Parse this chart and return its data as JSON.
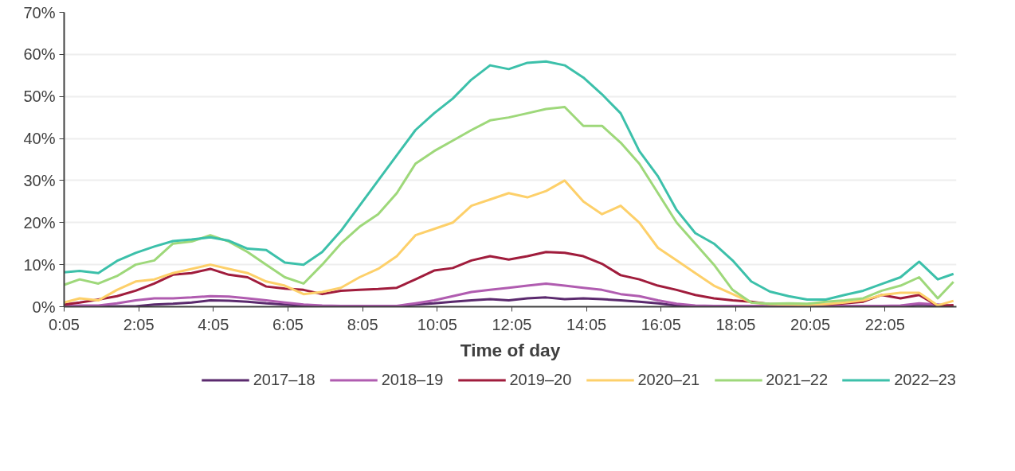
{
  "chart_data": {
    "type": "line",
    "xlabel": "Time of day",
    "x": [
      0.0833,
      0.5,
      1,
      1.5,
      2,
      2.5,
      3,
      3.5,
      4,
      4.5,
      5,
      5.5,
      6,
      6.5,
      7,
      7.5,
      8,
      8.5,
      9,
      9.5,
      10,
      10.5,
      11,
      11.5,
      12,
      12.5,
      13,
      13.5,
      14,
      14.5,
      15,
      15.5,
      16,
      16.5,
      17,
      17.5,
      18,
      18.5,
      19,
      19.5,
      20,
      20.5,
      21,
      21.5,
      22,
      22.5,
      23,
      23.5,
      23.92
    ],
    "series": [
      {
        "name": "2017–18",
        "color": "#5b2a6e",
        "values": [
          0.1,
          0.1,
          0.1,
          0.1,
          0.1,
          0.5,
          0.7,
          1,
          1.5,
          1.4,
          1.2,
          0.8,
          0.5,
          0.2,
          0.1,
          0.1,
          0.1,
          0.1,
          0.1,
          0.5,
          0.8,
          1.2,
          1.5,
          1.8,
          1.5,
          2,
          2.2,
          1.8,
          2,
          1.8,
          1.5,
          1.2,
          0.8,
          0.3,
          0.1,
          0.1,
          0.1,
          0.1,
          0.1,
          0.1,
          0.1,
          0.1,
          0.1,
          0.1,
          0.1,
          0.1,
          0.5,
          0.3,
          0.1
        ]
      },
      {
        "name": "2018–19",
        "color": "#b05cb0",
        "values": [
          0.2,
          0.3,
          0.3,
          0.8,
          1.5,
          2,
          2,
          2.2,
          2.5,
          2.4,
          2,
          1.5,
          1,
          0.5,
          0.3,
          0.2,
          0.2,
          0.2,
          0.2,
          0.8,
          1.5,
          2.5,
          3.5,
          4,
          4.5,
          5,
          5.5,
          5,
          4.5,
          4,
          3,
          2.5,
          1.5,
          0.7,
          0.3,
          0.2,
          0.2,
          0.2,
          0.2,
          0.2,
          0.2,
          0.2,
          0.2,
          0.2,
          0.2,
          0.3,
          0.8,
          0.5,
          0.2
        ]
      },
      {
        "name": "2019–20",
        "color": "#a01c3c",
        "values": [
          0.5,
          1,
          1.7,
          2.5,
          3.8,
          5.5,
          7.6,
          8,
          9,
          7.6,
          7,
          4.8,
          4.3,
          4,
          3,
          3.8,
          4,
          4.2,
          4.5,
          6.5,
          8.6,
          9.2,
          11,
          12,
          11.2,
          12,
          13,
          12.8,
          12,
          10.2,
          7.5,
          6.5,
          5,
          4,
          2.8,
          2,
          1.5,
          1.2,
          0.6,
          0.6,
          0.5,
          0.5,
          0.8,
          1.2,
          2.8,
          2,
          2.8,
          0.2,
          0.4
        ]
      },
      {
        "name": "2020–21",
        "color": "#fdd06a",
        "values": [
          1,
          2,
          1.5,
          4,
          6,
          6.5,
          8,
          9,
          10,
          9,
          8,
          6,
          5,
          3,
          3.5,
          4.5,
          7,
          9,
          12,
          17,
          18.5,
          20,
          24,
          25.5,
          27,
          26,
          27.5,
          30,
          25,
          22,
          24,
          20,
          14,
          11,
          8,
          5,
          3,
          1,
          0.6,
          0.5,
          0.4,
          0.6,
          1,
          1.5,
          2.8,
          3.3,
          3.3,
          0.3,
          1.4
        ]
      },
      {
        "name": "2021–22",
        "color": "#9ed87a",
        "values": [
          5.2,
          6.5,
          5.5,
          7.3,
          10,
          11,
          15,
          15.5,
          17,
          15.5,
          13,
          10,
          7,
          5.5,
          10,
          15,
          19,
          22,
          27,
          34,
          37,
          39.5,
          42,
          44.3,
          45,
          46,
          47,
          47.5,
          43,
          43,
          39,
          34,
          27,
          20,
          15,
          10,
          4,
          1,
          0.7,
          0.8,
          0.7,
          1.2,
          1.5,
          2,
          3.8,
          5,
          7,
          2,
          5.9
        ]
      },
      {
        "name": "2022–23",
        "color": "#3cc0aa",
        "values": [
          8.2,
          8.5,
          8,
          10.9,
          12.8,
          14.3,
          15.6,
          16,
          16.5,
          15.7,
          13.8,
          13.5,
          10.5,
          10,
          13,
          18,
          24,
          30,
          36,
          42,
          46,
          49.5,
          54,
          57.4,
          56.5,
          58,
          58.3,
          57.4,
          54.5,
          50.5,
          46,
          37,
          31,
          23,
          17.5,
          15,
          11,
          6,
          3.6,
          2.5,
          1.7,
          1.7,
          2.8,
          3.8,
          5.4,
          7,
          10.7,
          6.5,
          7.8
        ]
      }
    ],
    "xlim": [
      0.0833,
      24
    ],
    "xticks": [
      {
        "value": 0.0833,
        "label": "0:05"
      },
      {
        "value": 2.0833,
        "label": "2:05"
      },
      {
        "value": 4.0833,
        "label": "4:05"
      },
      {
        "value": 6.0833,
        "label": "6:05"
      },
      {
        "value": 8.0833,
        "label": "8:05"
      },
      {
        "value": 10.0833,
        "label": "10:05"
      },
      {
        "value": 12.0833,
        "label": "12:05"
      },
      {
        "value": 14.0833,
        "label": "14:05"
      },
      {
        "value": 16.0833,
        "label": "16:05"
      },
      {
        "value": 18.0833,
        "label": "18:05"
      },
      {
        "value": 20.0833,
        "label": "20:05"
      },
      {
        "value": 22.0833,
        "label": "22:05"
      }
    ],
    "ylim": [
      0,
      70
    ],
    "yticks": [
      {
        "value": 0,
        "label": "0%"
      },
      {
        "value": 10,
        "label": "10%"
      },
      {
        "value": 20,
        "label": "20%"
      },
      {
        "value": 30,
        "label": "30%"
      },
      {
        "value": 40,
        "label": "40%"
      },
      {
        "value": 50,
        "label": "50%"
      },
      {
        "value": 60,
        "label": "60%"
      },
      {
        "value": 70,
        "label": "70%"
      }
    ],
    "grid": "y",
    "legend": "bottom",
    "marker": "none",
    "line_style": "solid"
  }
}
